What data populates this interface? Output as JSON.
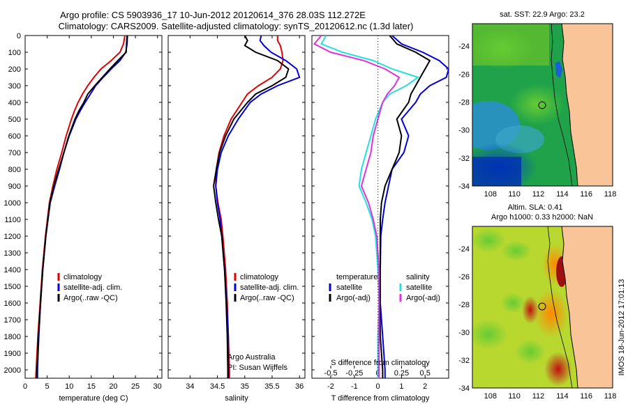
{
  "header": {
    "line1": "Argo profile: CS 5903936_17 10-Jun-2012 20120614_376 28.03S 112.272E",
    "line2": "Climatology: CARS2009. Satellite-adjusted climatology: synTS_20120612.nc (1.3d later)"
  },
  "colors": {
    "climatology": "#e00000",
    "satellite": "#0000dd",
    "argo": "#000000",
    "sat_s": "#22e0e0",
    "argo_s": "#e030e0"
  },
  "chart_data": [
    {
      "type": "line",
      "xlabel": "temperature (deg C)",
      "xlim": [
        0,
        31
      ],
      "ylim": [
        0,
        2050
      ],
      "xticks": [
        "0",
        "5",
        "10",
        "15",
        "20",
        "25",
        "30"
      ],
      "yticks": [
        "0",
        "100",
        "200",
        "300",
        "400",
        "500",
        "600",
        "700",
        "800",
        "900",
        "1000",
        "1100",
        "1200",
        "1300",
        "1400",
        "1500",
        "1600",
        "1700",
        "1800",
        "1900",
        "2000"
      ],
      "legend": [
        "climatology",
        "satellite-adj. clim.",
        "Argo(..raw -QC)"
      ],
      "depth": [
        0,
        50,
        100,
        150,
        200,
        250,
        300,
        350,
        400,
        450,
        500,
        600,
        700,
        800,
        900,
        1000,
        1200,
        1400,
        1600,
        1800,
        2000,
        2050
      ],
      "series": [
        {
          "name": "climatology",
          "values": [
            22.6,
            22.3,
            21.5,
            19.5,
            17.2,
            15.6,
            14.2,
            13.0,
            12.0,
            11.2,
            10.5,
            9.3,
            8.3,
            7.2,
            6.3,
            5.5,
            4.6,
            3.9,
            3.4,
            2.9,
            2.5,
            2.4
          ]
        },
        {
          "name": "satellite-adj. clim.",
          "values": [
            23.2,
            23.1,
            22.8,
            21.5,
            19.5,
            17.7,
            16.0,
            14.8,
            13.6,
            12.5,
            11.5,
            10.0,
            8.8,
            7.8,
            6.7,
            5.7,
            4.7,
            4.0,
            3.5,
            3.1,
            2.8,
            2.8
          ]
        },
        {
          "name": "Argo(..raw -QC)",
          "values": [
            23.1,
            23.0,
            22.9,
            21.0,
            19.2,
            17.5,
            15.8,
            14.2,
            13.3,
            12.2,
            11.3,
            9.9,
            8.8,
            7.6,
            6.5,
            5.6,
            4.7,
            4.0,
            3.5,
            3.0,
            2.7,
            2.6
          ]
        }
      ]
    },
    {
      "type": "line",
      "xlabel": "salinity",
      "xlim": [
        33.6,
        36.1
      ],
      "ylim": [
        0,
        2050
      ],
      "xticks": [
        "34",
        "34.5",
        "35",
        "35.5",
        "36"
      ],
      "legend": [
        "climatology",
        "satellite-adj. clim.",
        "Argo(..raw -QC)"
      ],
      "annotation": [
        "Argo Australia",
        "PI: Susan Wijffels"
      ],
      "depth": [
        0,
        30,
        60,
        100,
        150,
        200,
        250,
        300,
        350,
        400,
        500,
        600,
        700,
        800,
        900,
        1000,
        1100,
        1200,
        1400,
        1600,
        1800,
        2000,
        2050
      ],
      "series": [
        {
          "name": "climatology",
          "values": [
            35.6,
            35.6,
            35.65,
            35.68,
            35.7,
            35.65,
            35.5,
            35.25,
            35.05,
            34.95,
            34.75,
            34.62,
            34.53,
            34.48,
            34.47,
            34.51,
            34.57,
            34.6,
            34.65,
            34.68,
            34.7,
            34.72,
            34.72
          ]
        },
        {
          "name": "satellite-adj. clim.",
          "values": [
            35.3,
            35.28,
            35.35,
            35.48,
            35.75,
            35.95,
            36.0,
            35.6,
            35.3,
            35.1,
            34.88,
            34.7,
            34.57,
            34.5,
            34.47,
            34.5,
            34.55,
            34.58,
            34.63,
            34.67,
            34.7,
            34.7,
            34.7
          ]
        },
        {
          "name": "Argo(..raw -QC)",
          "values": [
            35.0,
            35.05,
            35.0,
            35.2,
            35.6,
            35.8,
            35.75,
            35.5,
            35.2,
            35.05,
            34.8,
            34.65,
            34.54,
            34.48,
            34.43,
            34.47,
            34.52,
            34.58,
            34.63,
            34.66,
            34.68,
            34.69,
            34.69
          ]
        }
      ]
    },
    {
      "type": "line",
      "xlabel": "T difference from climatology",
      "xlabel2": "S difference from climatology",
      "xlim": [
        -2.8,
        3.0
      ],
      "ylim": [
        0,
        2050
      ],
      "xticks_T": [
        "-2",
        "-1",
        "0",
        "1",
        "2"
      ],
      "xticks_S": [
        "-0.5",
        "-0.25",
        "0",
        "0.25",
        "0.5"
      ],
      "legend_T": {
        "heading": "temperature",
        "items": [
          "satellite",
          "Argo(-adj)"
        ]
      },
      "legend_S": {
        "heading": "salinity",
        "items": [
          "satellite",
          "Argo(-adj)"
        ]
      },
      "depth": [
        0,
        50,
        100,
        150,
        200,
        250,
        300,
        350,
        400,
        500,
        600,
        700,
        800,
        900,
        1000,
        1100,
        1200,
        1400,
        1600,
        1800,
        2000,
        2050
      ],
      "series": [
        {
          "name": "temperature satellite",
          "values": [
            0.6,
            1.0,
            1.9,
            2.6,
            3.0,
            2.9,
            2.2,
            1.8,
            1.6,
            1.0,
            1.3,
            1.1,
            0.6,
            0.45,
            0.3,
            0.2,
            0.12,
            0.1,
            0.1,
            0.2,
            0.3,
            0.3
          ]
        },
        {
          "name": "temperature Argo(-adj)",
          "values": [
            0.5,
            0.8,
            1.6,
            2.2,
            2.0,
            1.8,
            1.6,
            1.4,
            1.3,
            0.8,
            1.0,
            0.9,
            0.6,
            0.3,
            0.15,
            0.1,
            0.1,
            0.1,
            0.08,
            0.1,
            0.2,
            0.2
          ]
        },
        {
          "name": "salinity satellite",
          "values": [
            -2.2,
            -2.4,
            -1.5,
            -0.2,
            0.6,
            1.7,
            1.2,
            0.5,
            0.2,
            -0.1,
            -0.3,
            -0.5,
            -0.7,
            -0.8,
            -0.5,
            -0.25,
            -0.1,
            0.0,
            0.05,
            0.0,
            0.0,
            0.0
          ]
        },
        {
          "name": "salinity Argo(-adj)",
          "values": [
            -2.4,
            -2.7,
            -2.0,
            -0.6,
            0.3,
            0.9,
            0.7,
            0.4,
            0.2,
            0.0,
            -0.2,
            -0.3,
            -0.5,
            -0.7,
            -0.4,
            -0.2,
            -0.05,
            0.05,
            0.05,
            0.05,
            0.05,
            0.05
          ]
        }
      ]
    },
    {
      "type": "heatmap",
      "title": "sat. SST: 22.9 Argo: 23.2",
      "xticks": [
        "108",
        "110",
        "112",
        "114",
        "116",
        "118"
      ],
      "yticks": [
        "-24",
        "-26",
        "-28",
        "-30",
        "-32",
        "-34"
      ],
      "xlim": [
        106.5,
        118.2
      ],
      "ylim": [
        -34,
        -22.4
      ]
    },
    {
      "type": "heatmap",
      "title": "Altim. SLA: 0.41",
      "subtitle": "Argo h1000: 0.33 h2000: NaN",
      "xticks": [
        "108",
        "110",
        "112",
        "114",
        "116",
        "118"
      ],
      "yticks": [
        "-24",
        "-26",
        "-28",
        "-30",
        "-32",
        "-34"
      ],
      "xlim": [
        106.5,
        118.2
      ],
      "ylim": [
        -34,
        -22.4
      ]
    }
  ],
  "side_stamp": "IMOS 18-Jun-2012 17:01:13"
}
